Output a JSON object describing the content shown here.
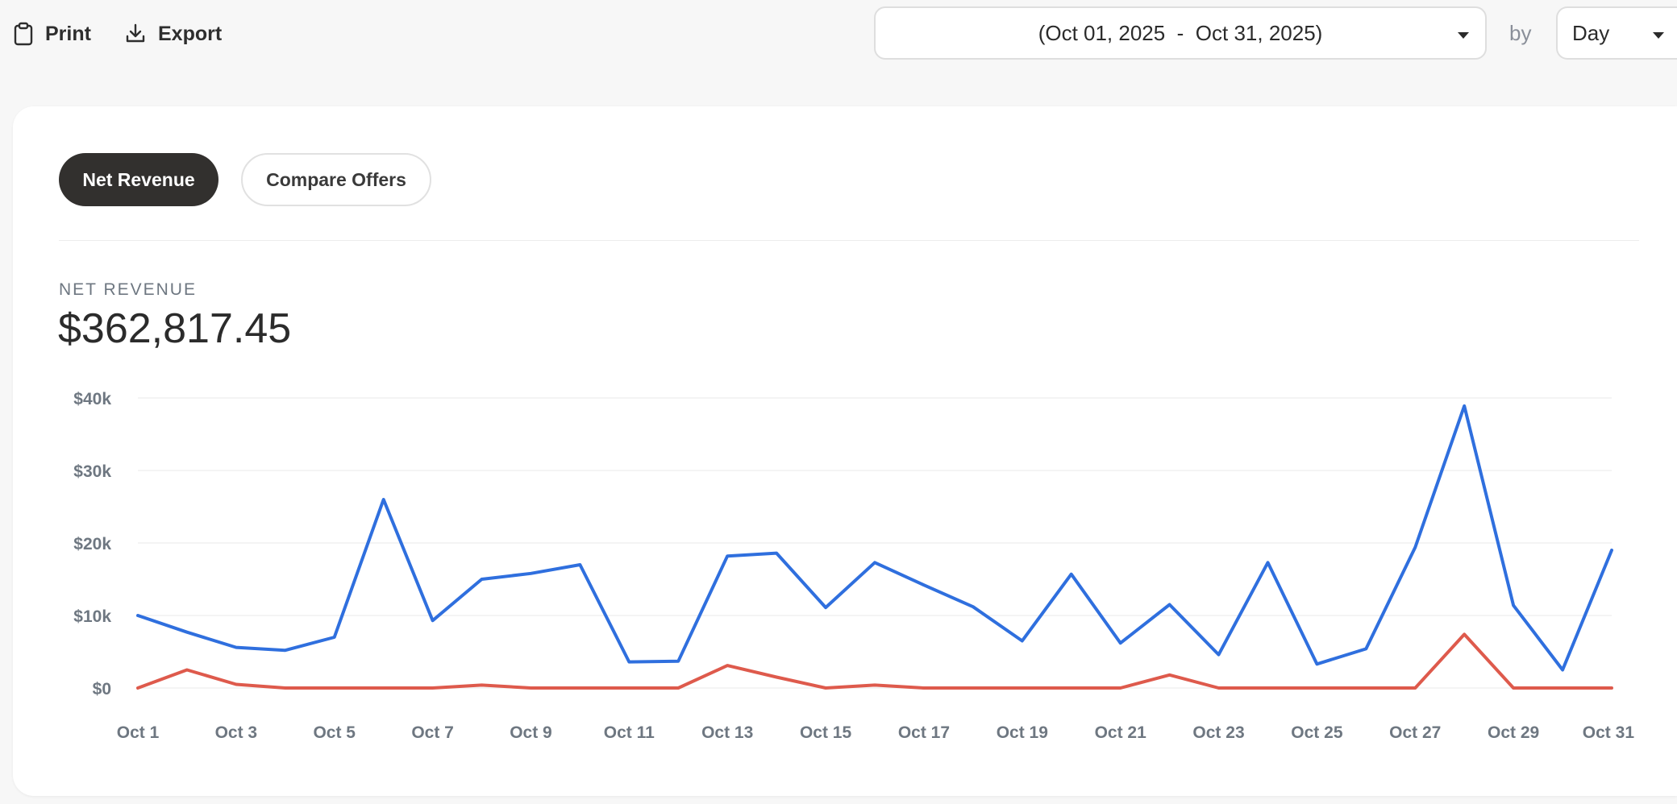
{
  "toolbar": {
    "print_label": "Print",
    "export_label": "Export"
  },
  "filters": {
    "date_range": "(Oct 01, 2025  -  Oct 31, 2025)",
    "by_label": "by",
    "granularity": "Day"
  },
  "tabs": [
    {
      "label": "Net Revenue",
      "active": true
    },
    {
      "label": "Compare Offers",
      "active": false
    }
  ],
  "metric": {
    "label": "NET REVENUE",
    "value": "$362,817.45"
  },
  "colors": {
    "primary_series": "#2f6fde",
    "secondary_series": "#de5a4c",
    "active_tab": "#32302e"
  },
  "chart_data": {
    "type": "line",
    "x": [
      "Oct 1",
      "Oct 2",
      "Oct 3",
      "Oct 4",
      "Oct 5",
      "Oct 6",
      "Oct 7",
      "Oct 8",
      "Oct 9",
      "Oct 10",
      "Oct 11",
      "Oct 12",
      "Oct 13",
      "Oct 14",
      "Oct 15",
      "Oct 16",
      "Oct 17",
      "Oct 18",
      "Oct 19",
      "Oct 20",
      "Oct 21",
      "Oct 22",
      "Oct 23",
      "Oct 24",
      "Oct 25",
      "Oct 26",
      "Oct 27",
      "Oct 28",
      "Oct 29",
      "Oct 30",
      "Oct 31"
    ],
    "x_tick_labels": [
      "Oct 1",
      "Oct 3",
      "Oct 5",
      "Oct 7",
      "Oct 9",
      "Oct 11",
      "Oct 13",
      "Oct 15",
      "Oct 17",
      "Oct 19",
      "Oct 21",
      "Oct 23",
      "Oct 25",
      "Oct 27",
      "Oct 29",
      "Oct 31"
    ],
    "y_tick_values": [
      0,
      10000,
      20000,
      30000,
      40000
    ],
    "y_tick_labels": [
      "$0",
      "$10k",
      "$20k",
      "$30k",
      "$40k"
    ],
    "ylim": [
      0,
      40000
    ],
    "grid": true,
    "series": [
      {
        "values": [
          10000,
          7700,
          5600,
          5200,
          7000,
          26000,
          9300,
          15000,
          15800,
          17000,
          3600,
          3700,
          18200,
          18600,
          11100,
          17300,
          14200,
          11200,
          6500,
          15700,
          6200,
          11500,
          4600,
          17300,
          3300,
          5400,
          19400,
          38900,
          11400,
          2500,
          19000
        ]
      },
      {
        "values": [
          0,
          2500,
          500,
          0,
          0,
          0,
          0,
          400,
          0,
          0,
          0,
          0,
          3100,
          1500,
          0,
          400,
          0,
          0,
          0,
          0,
          0,
          1800,
          0,
          0,
          0,
          0,
          0,
          7400,
          0,
          0,
          0
        ]
      }
    ]
  }
}
